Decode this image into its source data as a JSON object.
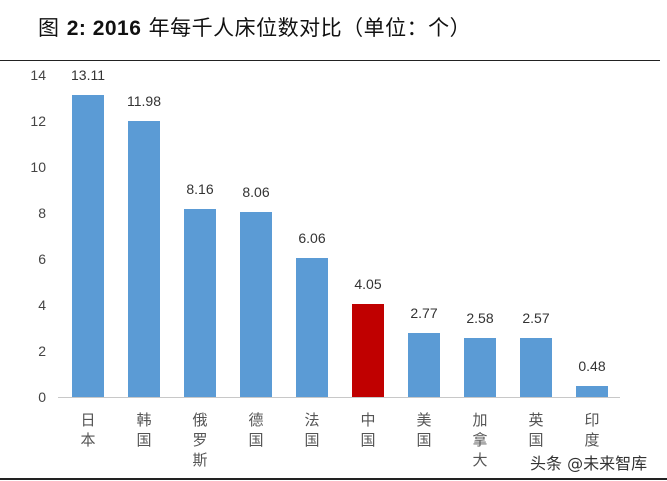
{
  "header": {
    "prefix": "图",
    "number": "2: 2016",
    "title_rest": "年每千人床位数对比（单位：个）"
  },
  "watermark": "头条 @未来智库",
  "colors": {
    "bar_default": "#5b9bd5",
    "bar_highlight": "#c00000",
    "axis": "#c8c8c8"
  },
  "chart_data": {
    "type": "bar",
    "title": "图 2: 2016 年每千人床位数对比（单位：个）",
    "xlabel": "",
    "ylabel": "",
    "ylim": [
      0,
      14
    ],
    "yticks": [
      0,
      2,
      4,
      6,
      8,
      10,
      12,
      14
    ],
    "grid": false,
    "legend": "none",
    "categories": [
      "日本",
      "韩国",
      "俄罗斯",
      "德国",
      "法国",
      "中国",
      "美国",
      "加拿大",
      "英国",
      "印度"
    ],
    "values": [
      13.11,
      11.98,
      8.16,
      8.06,
      6.06,
      4.05,
      2.77,
      2.58,
      2.57,
      0.48
    ],
    "value_labels": [
      "13.11",
      "11.98",
      "8.16",
      "8.06",
      "6.06",
      "4.05",
      "2.77",
      "2.58",
      "2.57",
      "0.48"
    ],
    "highlight_index": 5
  }
}
